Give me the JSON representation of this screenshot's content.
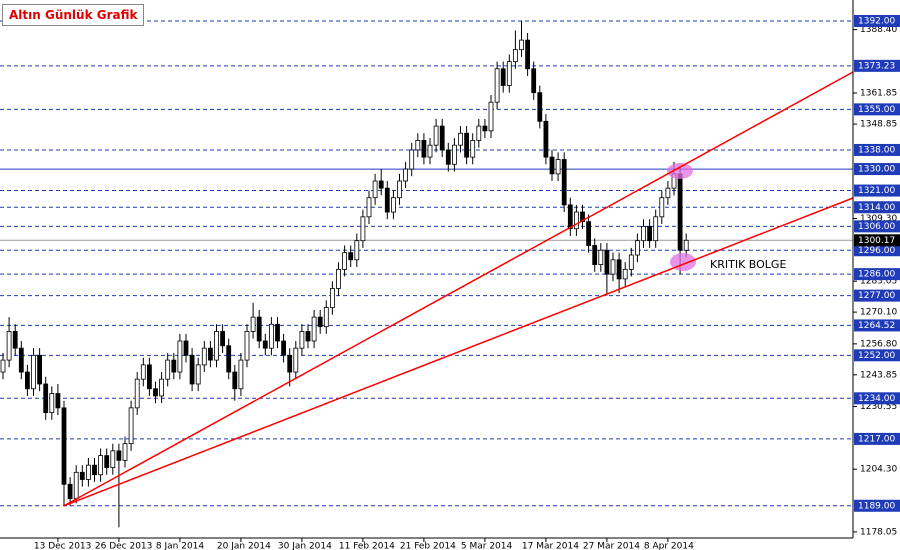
{
  "chart_data": {
    "type": "candlestick",
    "title": "Altın Günlük Grafik",
    "annotation": "KRITIK BOLGE",
    "categories": [
      null,
      null,
      null,
      null,
      null,
      null,
      null,
      null,
      null,
      "13 Dec 2013",
      null,
      null,
      null,
      null,
      null,
      null,
      null,
      null,
      null,
      "26 Dec 2013",
      null,
      null,
      null,
      null,
      null,
      null,
      null,
      null,
      null,
      "8 Jan 2014",
      null,
      null,
      null,
      null,
      null,
      null,
      null,
      null,
      null,
      "20 Jan 2014",
      null,
      null,
      null,
      null,
      null,
      null,
      null,
      null,
      null,
      "30 Jan 2014",
      null,
      null,
      null,
      null,
      null,
      null,
      null,
      null,
      null,
      "11 Feb 2014",
      null,
      null,
      null,
      null,
      null,
      null,
      null,
      null,
      null,
      "21 Feb 2014",
      null,
      null,
      null,
      null,
      null,
      null,
      null,
      null,
      null,
      "5 Mar 2014",
      null,
      null,
      null,
      null,
      null,
      null,
      null,
      null,
      null,
      "17 Mar 2014",
      null,
      null,
      null,
      null,
      null,
      null,
      null,
      null,
      null,
      "27 Mar 2014",
      null,
      null,
      null,
      null,
      null,
      null,
      null,
      null,
      null,
      "8 Apr 2014",
      null,
      null,
      null
    ],
    "open": [
      1245,
      1250,
      1262,
      1255,
      1245,
      1238,
      1252,
      1240,
      1228,
      1236,
      1230,
      1198,
      1192,
      1203,
      1200,
      1206,
      1202,
      1210,
      1205,
      1212,
      1208,
      1215,
      1230,
      1242,
      1248,
      1238,
      1235,
      1242,
      1250,
      1245,
      1258,
      1252,
      1240,
      1248,
      1255,
      1250,
      1262,
      1256,
      1245,
      1238,
      1250,
      1262,
      1268,
      1258,
      1255,
      1265,
      1258,
      1252,
      1245,
      1255,
      1262,
      1258,
      1268,
      1264,
      1272,
      1280,
      1288,
      1295,
      1292,
      1300,
      1310,
      1318,
      1325,
      1322,
      1312,
      1318,
      1325,
      1330,
      1338,
      1342,
      1335,
      1340,
      1348,
      1338,
      1332,
      1340,
      1345,
      1335,
      1342,
      1348,
      1346,
      1358,
      1372,
      1365,
      1375,
      1380,
      1384,
      1372,
      1362,
      1350,
      1335,
      1328,
      1334,
      1315,
      1305,
      1312,
      1308,
      1298,
      1290,
      1296,
      1286,
      1292,
      1284,
      1288,
      1294,
      1300,
      1306,
      1300,
      1310,
      1318,
      1322,
      1328,
      1296
    ],
    "high": [
      1253,
      1268,
      1265,
      1258,
      1248,
      1255,
      1255,
      1243,
      1239,
      1240,
      1233,
      1201,
      1206,
      1206,
      1209,
      1209,
      1213,
      1213,
      1215,
      1215,
      1218,
      1233,
      1245,
      1251,
      1251,
      1241,
      1245,
      1253,
      1253,
      1261,
      1261,
      1255,
      1251,
      1258,
      1258,
      1265,
      1265,
      1259,
      1248,
      1253,
      1265,
      1274,
      1271,
      1261,
      1268,
      1268,
      1261,
      1255,
      1258,
      1265,
      1265,
      1271,
      1271,
      1275,
      1283,
      1291,
      1298,
      1298,
      1303,
      1313,
      1321,
      1328,
      1330,
      1325,
      1321,
      1328,
      1333,
      1341,
      1345,
      1345,
      1343,
      1351,
      1351,
      1341,
      1343,
      1348,
      1348,
      1345,
      1351,
      1351,
      1361,
      1375,
      1375,
      1378,
      1388,
      1392,
      1387,
      1375,
      1365,
      1353,
      1338,
      1337,
      1337,
      1318,
      1315,
      1315,
      1311,
      1301,
      1299,
      1299,
      1295,
      1295,
      1291,
      1297,
      1303,
      1309,
      1309,
      1313,
      1321,
      1325,
      1333,
      1331,
      1303
    ],
    "low": [
      1242,
      1247,
      1252,
      1242,
      1235,
      1235,
      1237,
      1225,
      1225,
      1227,
      1189,
      1189,
      1190,
      1197,
      1197,
      1199,
      1199,
      1202,
      1202,
      1180,
      1205,
      1212,
      1227,
      1239,
      1235,
      1232,
      1232,
      1239,
      1242,
      1242,
      1249,
      1237,
      1237,
      1245,
      1247,
      1247,
      1253,
      1242,
      1233,
      1235,
      1247,
      1259,
      1255,
      1252,
      1252,
      1255,
      1249,
      1239,
      1242,
      1252,
      1255,
      1255,
      1261,
      1261,
      1269,
      1277,
      1285,
      1289,
      1289,
      1297,
      1307,
      1315,
      1319,
      1309,
      1309,
      1315,
      1322,
      1327,
      1335,
      1332,
      1332,
      1337,
      1335,
      1329,
      1329,
      1337,
      1332,
      1332,
      1339,
      1343,
      1343,
      1355,
      1362,
      1362,
      1372,
      1377,
      1369,
      1359,
      1347,
      1332,
      1325,
      1325,
      1312,
      1302,
      1302,
      1305,
      1295,
      1287,
      1287,
      1277,
      1283,
      1278,
      1281,
      1285,
      1291,
      1297,
      1297,
      1297,
      1307,
      1315,
      1319,
      1286,
      1293
    ],
    "close": [
      1250,
      1262,
      1255,
      1245,
      1238,
      1252,
      1240,
      1228,
      1236,
      1230,
      1198,
      1192,
      1203,
      1200,
      1206,
      1202,
      1210,
      1205,
      1212,
      1208,
      1215,
      1230,
      1242,
      1248,
      1238,
      1235,
      1242,
      1250,
      1245,
      1258,
      1252,
      1240,
      1248,
      1255,
      1250,
      1262,
      1256,
      1245,
      1238,
      1250,
      1262,
      1268,
      1258,
      1255,
      1265,
      1258,
      1252,
      1245,
      1255,
      1262,
      1258,
      1268,
      1264,
      1272,
      1280,
      1288,
      1295,
      1292,
      1300,
      1310,
      1318,
      1325,
      1322,
      1312,
      1318,
      1325,
      1330,
      1338,
      1342,
      1335,
      1340,
      1348,
      1338,
      1332,
      1340,
      1345,
      1335,
      1342,
      1348,
      1346,
      1358,
      1372,
      1365,
      1375,
      1380,
      1384,
      1372,
      1362,
      1350,
      1335,
      1328,
      1334,
      1315,
      1305,
      1312,
      1308,
      1298,
      1290,
      1296,
      1286,
      1292,
      1284,
      1288,
      1294,
      1300,
      1306,
      1300,
      1310,
      1318,
      1322,
      1328,
      1296,
      1300.17
    ],
    "ylim": [
      1175.5,
      1400.8
    ],
    "yticks": [
      {
        "value": 1388.4,
        "label": "1388.40"
      },
      {
        "value": 1361.85,
        "label": "1361.85"
      },
      {
        "value": 1348.85,
        "label": "1348.85"
      },
      {
        "value": 1309.3,
        "label": "1309.30"
      },
      {
        "value": 1283.05,
        "label": "1283.05"
      },
      {
        "value": 1270.1,
        "label": "1270.10"
      },
      {
        "value": 1256.8,
        "label": "1256.80"
      },
      {
        "value": 1243.85,
        "label": "1243.85"
      },
      {
        "value": 1230.55,
        "label": "1230.55"
      },
      {
        "value": 1204.3,
        "label": "1204.30"
      },
      {
        "value": 1178.05,
        "label": "1178.05"
      }
    ],
    "levels": [
      {
        "value": 1392,
        "label": "1392.00"
      },
      {
        "value": 1373.23,
        "label": "1373.23"
      },
      {
        "value": 1355,
        "label": "1355.00"
      },
      {
        "value": 1338,
        "label": "1338.00"
      },
      {
        "value": 1330,
        "label": "1330.00"
      },
      {
        "value": 1321,
        "label": "1321.00"
      },
      {
        "value": 1314,
        "label": "1314.00"
      },
      {
        "value": 1306,
        "label": "1306.00"
      },
      {
        "value": 1296,
        "label": "1296.00"
      },
      {
        "value": 1286,
        "label": "1286.00"
      },
      {
        "value": 1277,
        "label": "1277.00"
      },
      {
        "value": 1264.52,
        "label": "1264.52"
      },
      {
        "value": 1252,
        "label": "1252.00"
      },
      {
        "value": 1234,
        "label": "1234.00"
      },
      {
        "value": 1217,
        "label": "1217.00"
      },
      {
        "value": 1189,
        "label": "1189.00"
      }
    ],
    "solid_level": 4,
    "current_price": {
      "value": 1300.17,
      "label": "1300.17"
    },
    "level_color": "#1f3bb8",
    "up_color": "#ffffff",
    "down_color": "#000000",
    "trendline_color": "#ff0000"
  }
}
